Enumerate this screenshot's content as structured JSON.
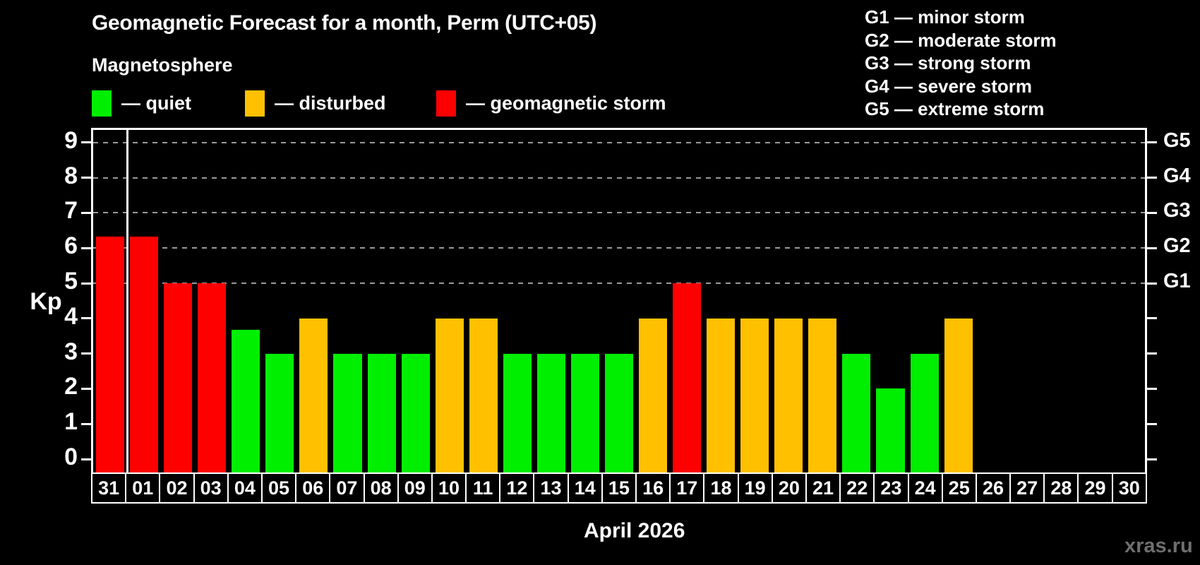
{
  "title": "Geomagnetic Forecast for a month, Perm (UTC+05)",
  "subtitle": "Magnetosphere",
  "legend": [
    {
      "key": "quiet",
      "label": "— quiet",
      "color": "#00ee00"
    },
    {
      "key": "disturbed",
      "label": "— disturbed",
      "color": "#ffc000"
    },
    {
      "key": "storm",
      "label": "— geomagnetic storm",
      "color": "#fe0000"
    }
  ],
  "storm_scale_legend": [
    {
      "code": "G1",
      "label": "minor storm"
    },
    {
      "code": "G2",
      "label": "moderate storm"
    },
    {
      "code": "G3",
      "label": "strong storm"
    },
    {
      "code": "G4",
      "label": "severe storm"
    },
    {
      "code": "G5",
      "label": "extreme storm"
    }
  ],
  "chart_data": {
    "type": "bar",
    "title": "Geomagnetic Forecast for a month, Perm (UTC+05)",
    "ylabel": "Kp",
    "footer": "April 2026",
    "ylim": [
      0,
      9
    ],
    "yticks": [
      0,
      1,
      2,
      3,
      4,
      5,
      6,
      7,
      8,
      9
    ],
    "grid_kp_levels": [
      5,
      6,
      7,
      8,
      9
    ],
    "right_axis_labels": [
      {
        "kp": 5,
        "label": "G1"
      },
      {
        "kp": 6,
        "label": "G2"
      },
      {
        "kp": 7,
        "label": "G3"
      },
      {
        "kp": 8,
        "label": "G4"
      },
      {
        "kp": 9,
        "label": "G5"
      }
    ],
    "month_separator_after_index": 0,
    "categories": [
      "31",
      "01",
      "02",
      "03",
      "04",
      "05",
      "06",
      "07",
      "08",
      "09",
      "10",
      "11",
      "12",
      "13",
      "14",
      "15",
      "16",
      "17",
      "18",
      "19",
      "20",
      "21",
      "22",
      "23",
      "24",
      "25",
      "26",
      "27",
      "28",
      "29",
      "30"
    ],
    "values": [
      6.33,
      6.33,
      5,
      5,
      3.67,
      3,
      4,
      3,
      3,
      3,
      4,
      4,
      3,
      3,
      3,
      3,
      4,
      5,
      4,
      4,
      4,
      4,
      3,
      2,
      3,
      4,
      null,
      null,
      null,
      null,
      null
    ],
    "status": [
      "storm",
      "storm",
      "storm",
      "storm",
      "quiet",
      "quiet",
      "disturbed",
      "quiet",
      "quiet",
      "quiet",
      "disturbed",
      "disturbed",
      "quiet",
      "quiet",
      "quiet",
      "quiet",
      "disturbed",
      "storm",
      "disturbed",
      "disturbed",
      "disturbed",
      "disturbed",
      "quiet",
      "quiet",
      "quiet",
      "disturbed",
      null,
      null,
      null,
      null,
      null
    ],
    "palette": {
      "quiet": "#00ee00",
      "disturbed": "#ffc000",
      "storm": "#fe0000"
    }
  },
  "watermark": "xras.ru"
}
